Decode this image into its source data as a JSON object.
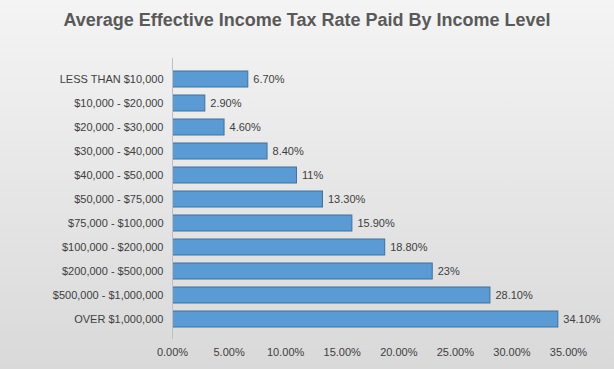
{
  "chart_data": {
    "type": "bar",
    "orientation": "horizontal",
    "title": "Average Effective Income Tax Rate Paid By Income Level",
    "categories": [
      "LESS THAN $10,000",
      "$10,000 - $20,000",
      "$20,000 - $30,000",
      "$30,000 - $40,000",
      "$40,000 - $50,000",
      "$50,000 - $75,000",
      "$75,000 - $100,000",
      "$100,000 - $200,000",
      "$200,000 - $500,000",
      "$500,000 - $1,000,000",
      "OVER $1,000,000"
    ],
    "values": [
      6.7,
      2.9,
      4.6,
      8.4,
      11,
      13.3,
      15.9,
      18.8,
      23,
      28.1,
      34.1
    ],
    "value_labels": [
      "6.70%",
      "2.90%",
      "4.60%",
      "8.40%",
      "11%",
      "13.30%",
      "15.90%",
      "18.80%",
      "23%",
      "28.10%",
      "34.10%"
    ],
    "data_labels": true,
    "color": "#5b9bd5",
    "xlim": [
      0,
      35
    ],
    "xticks": [
      {
        "value": 0,
        "label": "0.00%"
      },
      {
        "value": 5,
        "label": "5.00%"
      },
      {
        "value": 10,
        "label": "10.00%"
      },
      {
        "value": 15,
        "label": "15.00%"
      },
      {
        "value": 20,
        "label": "20.00%"
      },
      {
        "value": 25,
        "label": "25.00%"
      },
      {
        "value": 30,
        "label": "30.00%"
      },
      {
        "value": 35,
        "label": "35.00%"
      }
    ],
    "grid": false
  }
}
